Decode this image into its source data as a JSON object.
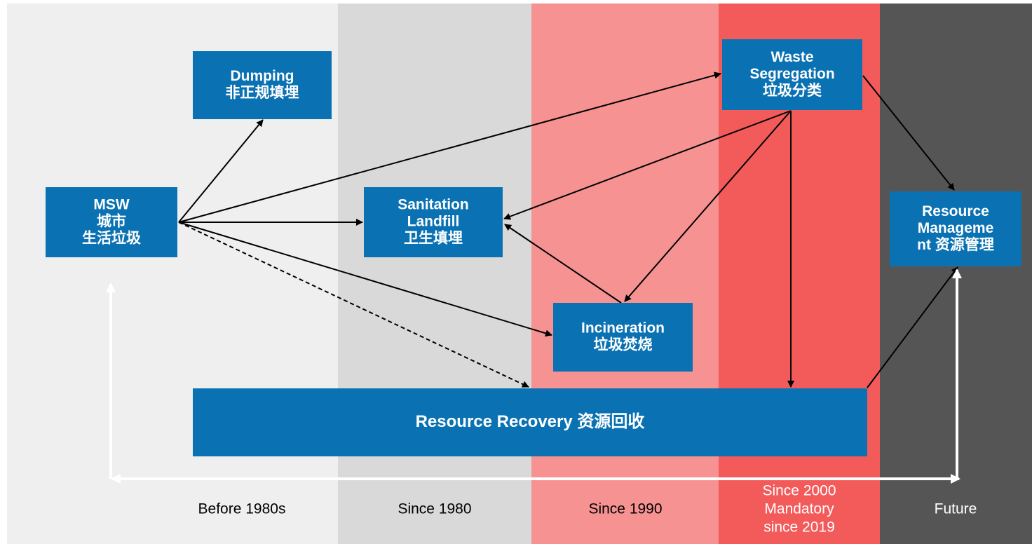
{
  "nodes": [
    {
      "id": "dumping",
      "lines": [
        "Dumping",
        "非正规填埋"
      ]
    },
    {
      "id": "msw",
      "lines": [
        "MSW",
        "城市",
        "生活垃圾"
      ]
    },
    {
      "id": "sanitation",
      "lines": [
        "Sanitation",
        "Landfill",
        "卫生填埋"
      ]
    },
    {
      "id": "segregation",
      "lines": [
        "Waste",
        "Segregation",
        "垃圾分类"
      ]
    },
    {
      "id": "management",
      "lines": [
        "Resource",
        "Manageme",
        "nt 资源管理"
      ]
    },
    {
      "id": "incineration",
      "lines": [
        "Incineration",
        "垃圾焚烧"
      ]
    },
    {
      "id": "recovery",
      "lines": [
        "Resource Recovery 资源回收"
      ]
    }
  ],
  "eras": [
    {
      "lines": [
        "Before 1980s"
      ]
    },
    {
      "lines": [
        "Since 1980"
      ]
    },
    {
      "lines": [
        "Since 1990"
      ]
    },
    {
      "lines": [
        "Since 2000",
        "Mandatory",
        "since 2019"
      ]
    },
    {
      "lines": [
        "Future"
      ]
    }
  ]
}
